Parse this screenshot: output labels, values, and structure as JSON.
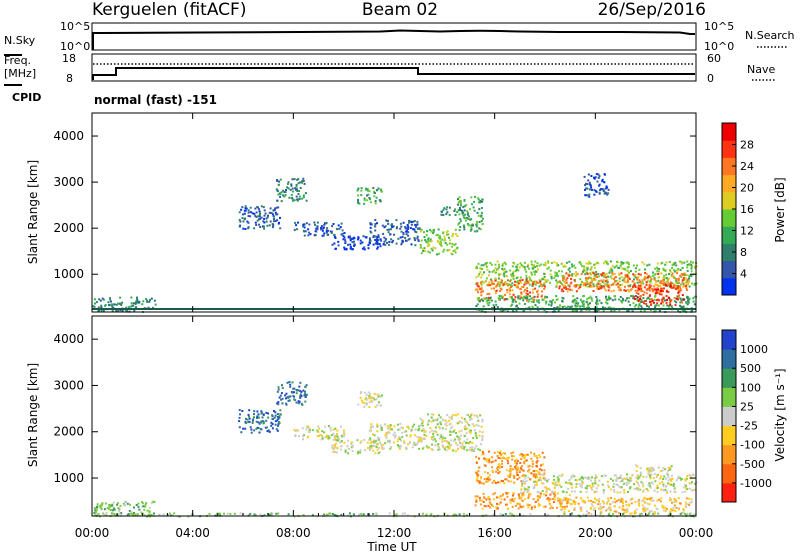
{
  "header": {
    "site": "Kerguelen (fitACF)",
    "beam": "Beam 02",
    "date": "26/Sep/2016"
  },
  "noise_panel": {
    "left_label": "N.Sky",
    "right_label": "N.Search",
    "left_ticks": [
      "10^5",
      "10^0"
    ],
    "right_ticks": [
      "10^5",
      "10^0"
    ]
  },
  "freq_panel": {
    "left_label_1": "Freq.",
    "left_label_2": "[MHz]",
    "left_ticks": [
      "18",
      "8"
    ],
    "right_ticks": [
      "60",
      "0"
    ],
    "right_label": "Nave",
    "cpid_label": "CPID",
    "cpid_text": "normal (fast) -151",
    "freq_series_mhz": [
      [
        0,
        9.5
      ],
      [
        1,
        11.5
      ],
      [
        13,
        11.5
      ],
      [
        13,
        9.5
      ],
      [
        24,
        9.5
      ]
    ],
    "nave_level": 37
  },
  "x_axis": {
    "title": "Time UT",
    "ticks": [
      "00:00",
      "04:00",
      "08:00",
      "12:00",
      "16:00",
      "20:00",
      "00:00"
    ]
  },
  "power_panel": {
    "ylabel": "Slant Range [km]",
    "yticks": [
      "4000",
      "3000",
      "2000",
      "1000"
    ],
    "colorbar_title": "Power [dB]",
    "colorbar_ticks": [
      "28",
      "24",
      "20",
      "16",
      "12",
      "8",
      "4"
    ],
    "colors": [
      "#0033ee",
      "#3355aa",
      "#2f7f6a",
      "#33aa55",
      "#66cc33",
      "#ddcc22",
      "#ffaa22",
      "#ff7722",
      "#ff3311",
      "#ee0000"
    ]
  },
  "velocity_panel": {
    "ylabel": "Slant Range [km]",
    "yticks": [
      "4000",
      "3000",
      "2000",
      "1000"
    ],
    "colorbar_title": "Velocity [m s⁻¹]",
    "colorbar_ticks": [
      "1000",
      "500",
      "100",
      "25",
      "-25",
      "-100",
      "-500",
      "-1000"
    ],
    "colors": [
      "#2244cc",
      "#2f6f9f",
      "#3a9a5a",
      "#7acc44",
      "#cccccc",
      "#ffcc22",
      "#ff9922",
      "#ff6611",
      "#ff2211"
    ]
  },
  "chart_data": {
    "type": "heatmap",
    "x_range_hours": [
      0,
      24
    ],
    "y_range_km": [
      180,
      4500
    ],
    "power_regions": [
      {
        "t0": 0,
        "t1": 2.5,
        "r0": 200,
        "r1": 520,
        "level": 2
      },
      {
        "t0": 5.8,
        "t1": 7.5,
        "r0": 2000,
        "r1": 2500,
        "level": 1
      },
      {
        "t0": 7.3,
        "t1": 8.5,
        "r0": 2600,
        "r1": 3100,
        "level": 2
      },
      {
        "t0": 8.0,
        "t1": 10.0,
        "r0": 1850,
        "r1": 2150,
        "level": 1
      },
      {
        "t0": 9.5,
        "t1": 11.5,
        "r0": 1550,
        "r1": 1850,
        "level": 0
      },
      {
        "t0": 10.5,
        "t1": 11.5,
        "r0": 2550,
        "r1": 2900,
        "level": 3
      },
      {
        "t0": 11.0,
        "t1": 13.0,
        "r0": 1650,
        "r1": 2200,
        "level": 1
      },
      {
        "t0": 13.0,
        "t1": 14.5,
        "r0": 1450,
        "r1": 2000,
        "level": 4
      },
      {
        "t0": 14.5,
        "t1": 15.5,
        "r0": 1950,
        "r1": 2700,
        "level": 3
      },
      {
        "t0": 13.8,
        "t1": 14.8,
        "r0": 2300,
        "r1": 2500,
        "level": 2
      },
      {
        "t0": 15.2,
        "t1": 24.0,
        "r0": 750,
        "r1": 1300,
        "level": 4
      },
      {
        "t0": 15.2,
        "t1": 18.0,
        "r0": 450,
        "r1": 900,
        "level": 7
      },
      {
        "t0": 18.5,
        "t1": 23.8,
        "r0": 650,
        "r1": 1050,
        "level": 7
      },
      {
        "t0": 15.2,
        "t1": 24.0,
        "r0": 200,
        "r1": 550,
        "level": 3
      },
      {
        "t0": 21.5,
        "t1": 23.5,
        "r0": 350,
        "r1": 800,
        "level": 8
      },
      {
        "t0": 19.5,
        "t1": 20.5,
        "r0": 2700,
        "r1": 3200,
        "level": 1
      }
    ],
    "velocity_regions": [
      {
        "t0": 0,
        "t1": 2.5,
        "r0": 200,
        "r1": 520,
        "level": 3
      },
      {
        "t0": 5.8,
        "t1": 7.5,
        "r0": 2000,
        "r1": 2500,
        "level": 1
      },
      {
        "t0": 7.3,
        "t1": 8.5,
        "r0": 2600,
        "r1": 3100,
        "level": 1
      },
      {
        "t0": 8.0,
        "t1": 10.0,
        "r0": 1850,
        "r1": 2150,
        "level": 4
      },
      {
        "t0": 9.5,
        "t1": 11.5,
        "r0": 1550,
        "r1": 1850,
        "level": 4
      },
      {
        "t0": 10.5,
        "t1": 11.5,
        "r0": 2550,
        "r1": 2900,
        "level": 4
      },
      {
        "t0": 11.0,
        "t1": 13.0,
        "r0": 1650,
        "r1": 2200,
        "level": 4
      },
      {
        "t0": 13.0,
        "t1": 15.5,
        "r0": 1600,
        "r1": 2400,
        "level": 4
      },
      {
        "t0": 15.2,
        "t1": 18.0,
        "r0": 900,
        "r1": 1600,
        "level": 6
      },
      {
        "t0": 15.2,
        "t1": 19.0,
        "r0": 350,
        "r1": 700,
        "level": 6
      },
      {
        "t0": 17.0,
        "t1": 24.0,
        "r0": 700,
        "r1": 1100,
        "level": 4
      },
      {
        "t0": 18.5,
        "t1": 23.8,
        "r0": 250,
        "r1": 600,
        "level": 5
      },
      {
        "t0": 21.5,
        "t1": 23.0,
        "r0": 1100,
        "r1": 1300,
        "level": 4
      },
      {
        "t0": 0,
        "t1": 24.0,
        "r0": 190,
        "r1": 260,
        "level": 3
      }
    ]
  }
}
